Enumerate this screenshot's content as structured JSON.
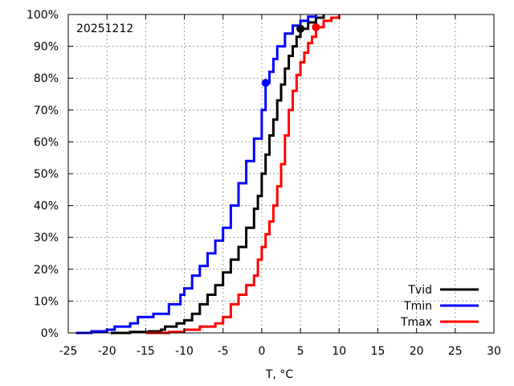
{
  "chart_data": {
    "type": "line",
    "title": "",
    "annotation": "20251212",
    "xlabel": "T, °C",
    "ylabel": "",
    "xlim": [
      -25,
      30
    ],
    "ylim": [
      0,
      100
    ],
    "x_ticks": [
      -25,
      -20,
      -15,
      -10,
      -5,
      0,
      5,
      10,
      15,
      20,
      25,
      30
    ],
    "x_tick_labels": [
      "-25",
      "-20",
      "-15",
      "-10",
      "-5",
      "0",
      "5",
      "10",
      "15",
      "20",
      "25",
      "30"
    ],
    "y_ticks": [
      0,
      10,
      20,
      30,
      40,
      50,
      60,
      70,
      80,
      90,
      100
    ],
    "y_tick_labels": [
      "0%",
      "10%",
      "20%",
      "30%",
      "40%",
      "50%",
      "60%",
      "70%",
      "80%",
      "90%",
      "100%"
    ],
    "grid": true,
    "legend_position": "bottom-right",
    "series": [
      {
        "name": "Tvid",
        "color": "#000000",
        "marker": {
          "x": 5.0,
          "y": 95.5
        },
        "points": [
          [
            -19.5,
            0
          ],
          [
            -17,
            0.3
          ],
          [
            -14.5,
            0.5
          ],
          [
            -13,
            1
          ],
          [
            -12.5,
            2
          ],
          [
            -11,
            3
          ],
          [
            -10,
            4
          ],
          [
            -9,
            6
          ],
          [
            -8,
            9
          ],
          [
            -7,
            12
          ],
          [
            -6,
            15
          ],
          [
            -5,
            19
          ],
          [
            -4,
            23
          ],
          [
            -3,
            27
          ],
          [
            -2,
            33
          ],
          [
            -1,
            39
          ],
          [
            -0.5,
            43
          ],
          [
            0,
            50
          ],
          [
            0.5,
            56
          ],
          [
            1,
            62
          ],
          [
            1.5,
            67
          ],
          [
            2,
            73
          ],
          [
            2.5,
            78
          ],
          [
            3,
            83
          ],
          [
            3.5,
            87
          ],
          [
            4,
            90
          ],
          [
            4.5,
            93
          ],
          [
            5,
            95.5
          ],
          [
            6,
            97.5
          ],
          [
            7,
            99
          ],
          [
            8,
            100
          ]
        ]
      },
      {
        "name": "Tmin",
        "color": "#0000ff",
        "marker": {
          "x": 0.5,
          "y": 78.5
        },
        "points": [
          [
            -24,
            0
          ],
          [
            -22,
            0.5
          ],
          [
            -20,
            1
          ],
          [
            -19,
            2
          ],
          [
            -17,
            3
          ],
          [
            -16,
            5
          ],
          [
            -14,
            6
          ],
          [
            -12,
            9
          ],
          [
            -10.5,
            12
          ],
          [
            -10,
            14
          ],
          [
            -9,
            18
          ],
          [
            -8,
            21
          ],
          [
            -7,
            25
          ],
          [
            -6,
            29
          ],
          [
            -5,
            33
          ],
          [
            -4,
            40
          ],
          [
            -3,
            47
          ],
          [
            -2,
            54
          ],
          [
            -1,
            61
          ],
          [
            0,
            70
          ],
          [
            0.5,
            78.5
          ],
          [
            1,
            82
          ],
          [
            1.5,
            86
          ],
          [
            2,
            90
          ],
          [
            3,
            94
          ],
          [
            4,
            96.5
          ],
          [
            5,
            98
          ],
          [
            6,
            99.3
          ],
          [
            7,
            100
          ]
        ]
      },
      {
        "name": "Tmax",
        "color": "#ff0000",
        "marker": {
          "x": 7.0,
          "y": 96
        },
        "points": [
          [
            -15,
            0
          ],
          [
            -12,
            0.3
          ],
          [
            -10,
            1
          ],
          [
            -8,
            2
          ],
          [
            -6,
            3
          ],
          [
            -5,
            5
          ],
          [
            -4,
            9
          ],
          [
            -3,
            12
          ],
          [
            -2,
            15
          ],
          [
            -1,
            18
          ],
          [
            -0.5,
            23
          ],
          [
            0,
            27
          ],
          [
            0.5,
            31
          ],
          [
            1,
            35
          ],
          [
            1.5,
            40
          ],
          [
            2,
            46
          ],
          [
            2.5,
            53
          ],
          [
            3,
            62
          ],
          [
            3.5,
            70
          ],
          [
            4,
            76
          ],
          [
            4.5,
            81
          ],
          [
            5,
            85
          ],
          [
            5.5,
            88
          ],
          [
            6,
            91
          ],
          [
            6.5,
            93
          ],
          [
            7,
            96
          ],
          [
            8,
            98
          ],
          [
            9,
            99
          ],
          [
            10,
            100
          ]
        ]
      }
    ]
  }
}
